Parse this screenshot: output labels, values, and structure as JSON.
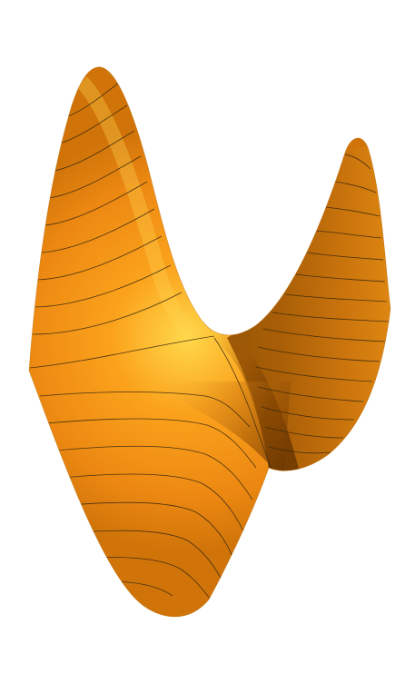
{
  "figure": {
    "subject": "saddle-surface",
    "surface_color": "#f7931e",
    "highlight_color": "#ffd23a",
    "shadow_color": "#7a3f00",
    "contour_color": "#3a2a10",
    "background_color": "#ffffff"
  }
}
